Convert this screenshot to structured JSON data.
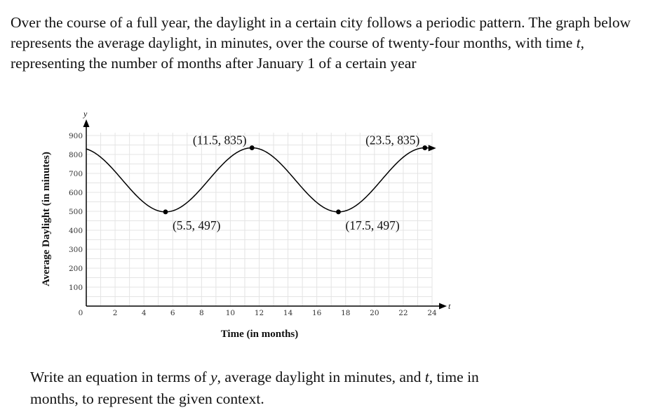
{
  "intro": {
    "part1": "Over the course of a full year, the daylight in a certain city follows a periodic pattern. The graph below represents the average daylight, in minutes, over the course of twenty-four months, with time ",
    "var": "t",
    "part2": ", representing the number of months after January 1 of a certain year"
  },
  "question": {
    "part1": "Write an equation in terms of ",
    "var1": "y",
    "part2": ", average daylight in minutes, and ",
    "var2": "t",
    "part3": ", time in months, to represent the given context."
  },
  "chart_data": {
    "type": "line",
    "xlabel": "Time (in months)",
    "ylabel": "Average Daylight (in minutes)",
    "x_axis_letter": "t",
    "y_axis_letter": "y",
    "xlim": [
      0,
      24
    ],
    "ylim": [
      0,
      900
    ],
    "origin_label": "0",
    "x_ticks": [
      2,
      4,
      6,
      8,
      10,
      12,
      14,
      16,
      18,
      20,
      22,
      24
    ],
    "y_ticks": [
      100,
      200,
      300,
      400,
      500,
      600,
      700,
      800,
      900
    ],
    "grid": true,
    "curve": {
      "amplitude": 169,
      "midline": 666,
      "period": 12,
      "max_at": 11.5,
      "x_start": 0,
      "x_end": 23.5
    },
    "points": [
      {
        "x": 5.5,
        "y": 497,
        "label": "(5.5, 497)"
      },
      {
        "x": 11.5,
        "y": 835,
        "label": "(11.5, 835)"
      },
      {
        "x": 17.5,
        "y": 497,
        "label": "(17.5, 497)"
      },
      {
        "x": 23.5,
        "y": 835,
        "label": "(23.5, 835)"
      }
    ],
    "colors": {
      "curve": "#000000",
      "grid": "#e4e4e4"
    }
  }
}
